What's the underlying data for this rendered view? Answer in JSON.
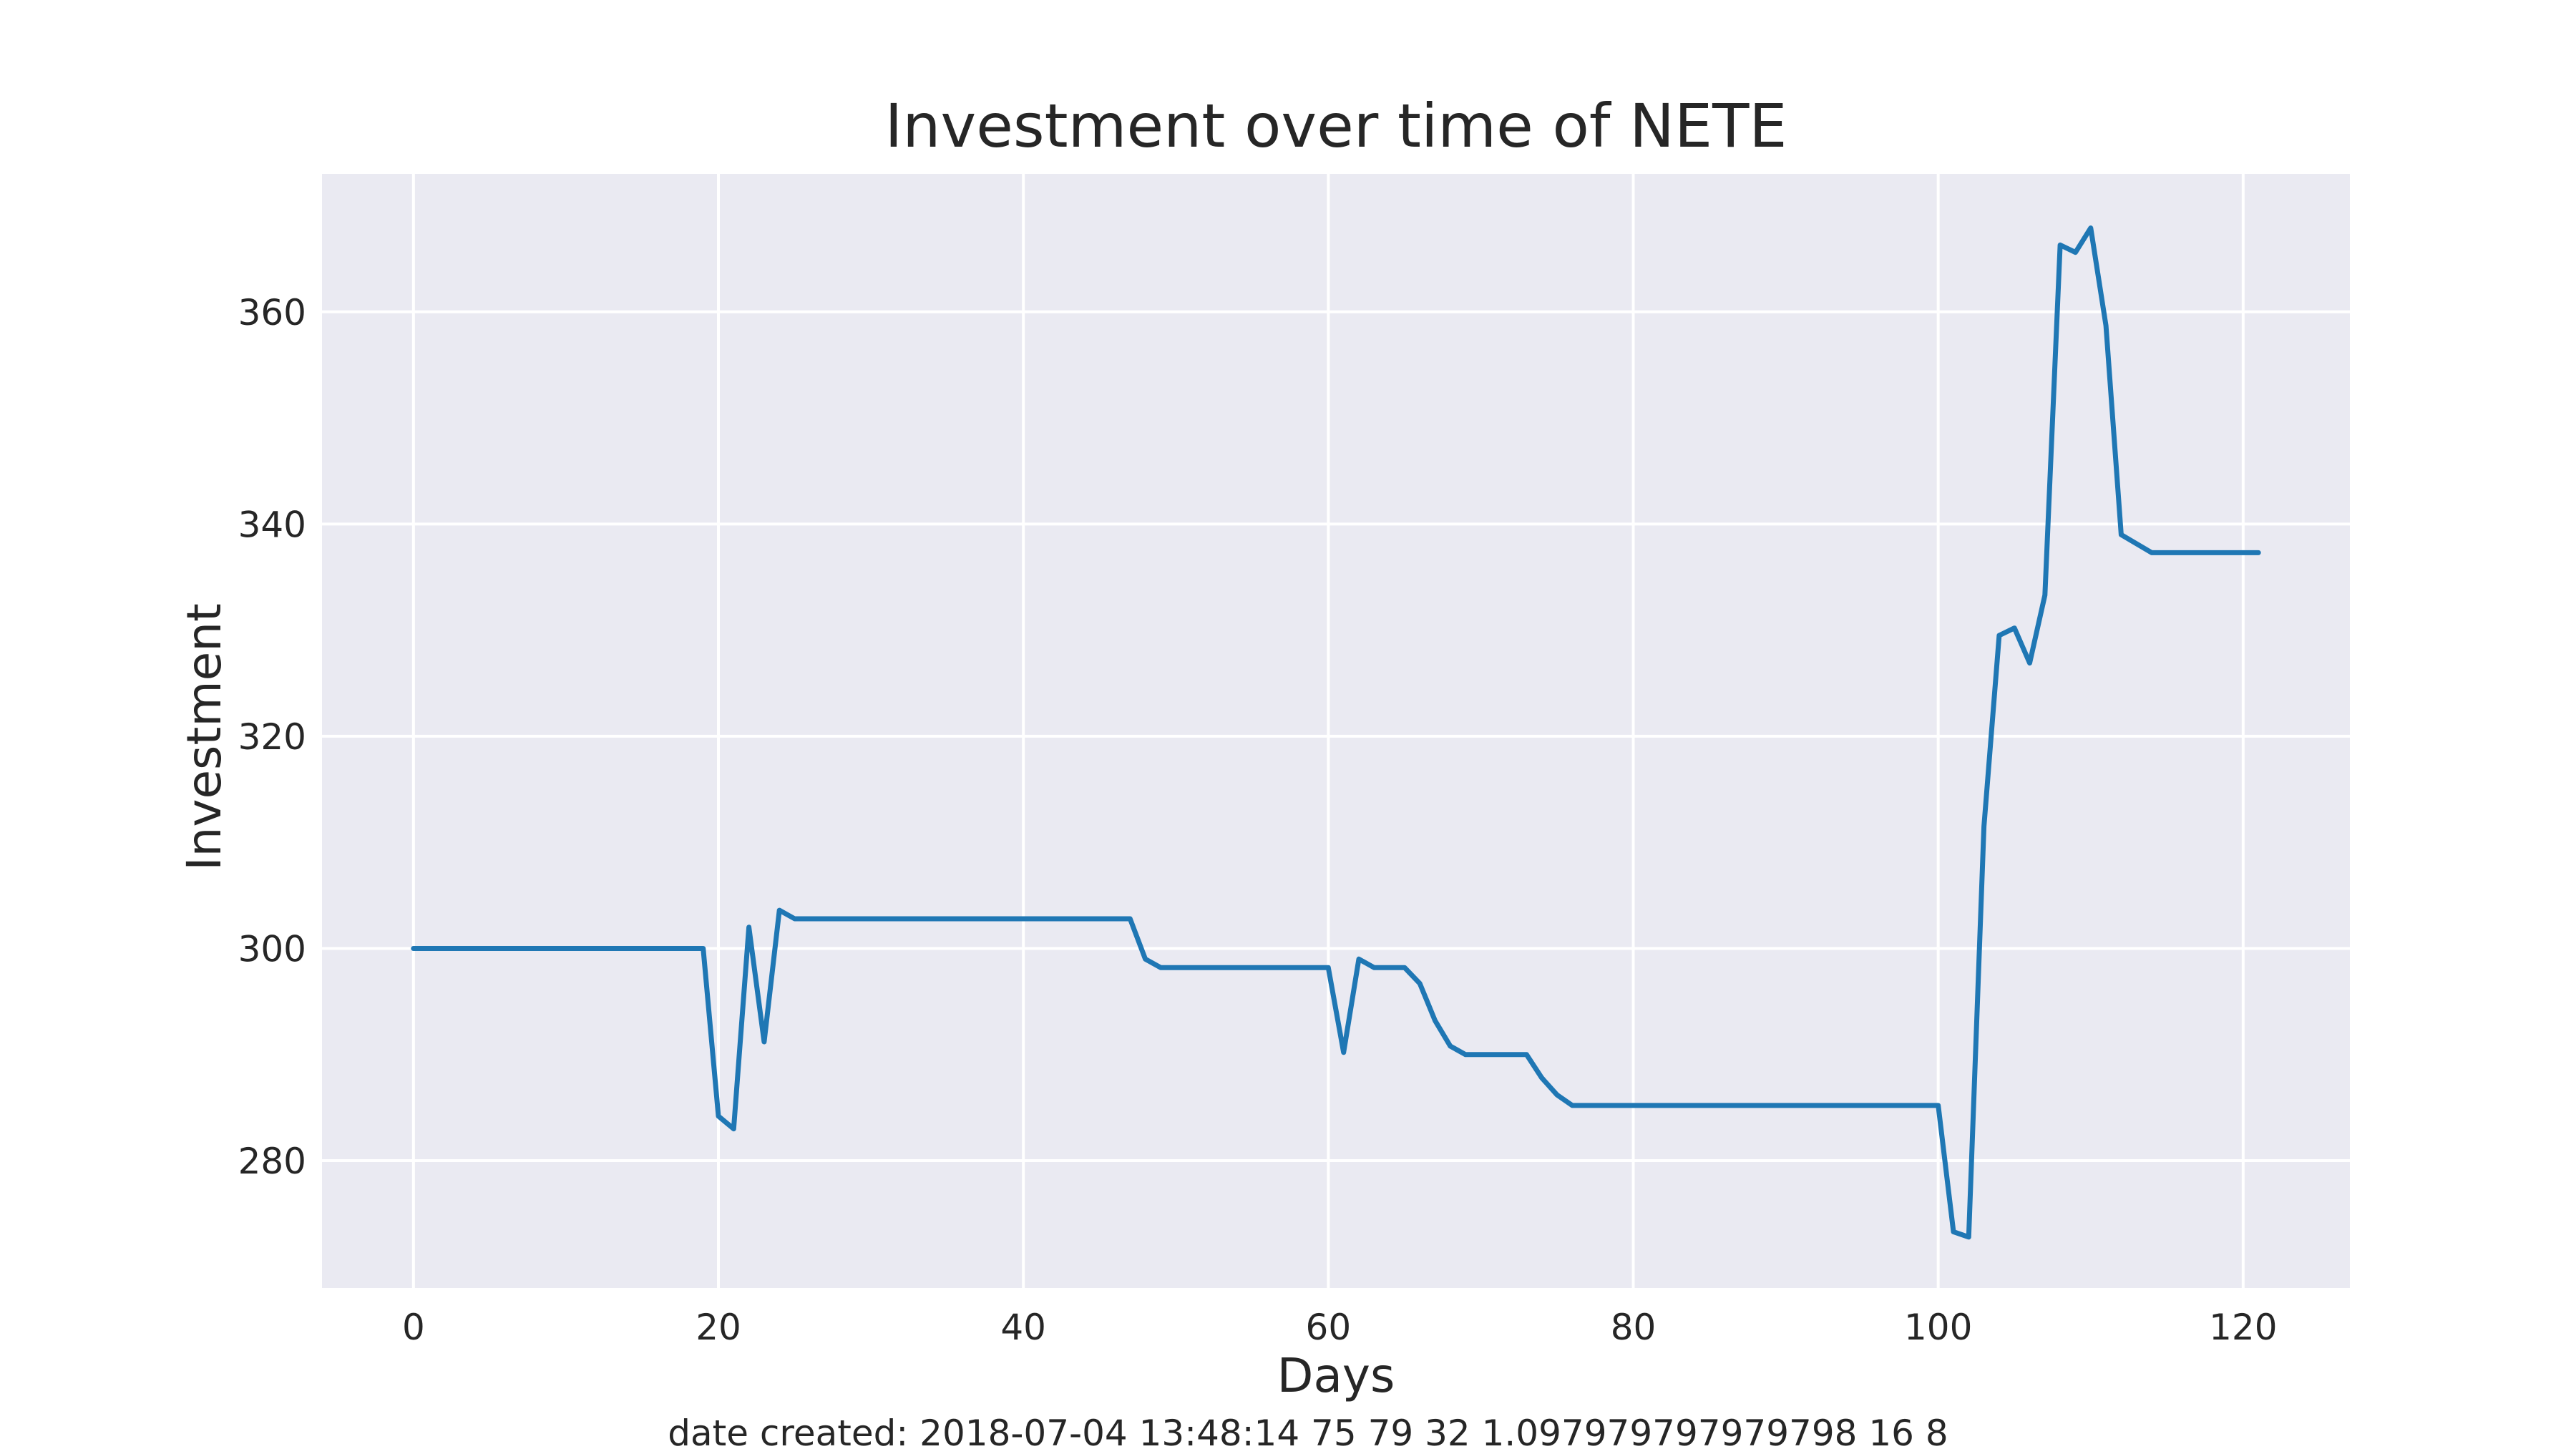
{
  "chart_data": {
    "type": "line",
    "title": "Investment over time of NETE",
    "xlabel": "Days",
    "ylabel": "Investment",
    "xlim": [
      -6,
      127
    ],
    "ylim": [
      268,
      373
    ],
    "x_ticks": [
      0,
      20,
      40,
      60,
      80,
      100,
      120
    ],
    "y_ticks": [
      280,
      300,
      320,
      340,
      360
    ],
    "grid": true,
    "legend": "none",
    "series": [
      {
        "color": "#1f77b4",
        "x": [
          0,
          19,
          20,
          21,
          22,
          23,
          24,
          25,
          47,
          48,
          49,
          60,
          61,
          62,
          63,
          65,
          66,
          67,
          68,
          69,
          73,
          74,
          75,
          76,
          100,
          101,
          102,
          103,
          104,
          105,
          106,
          107,
          108,
          109,
          110,
          111,
          112,
          114,
          121
        ],
        "y": [
          300,
          300,
          284.2,
          283,
          302,
          291.2,
          303.6,
          302.8,
          302.8,
          299,
          298.2,
          298.2,
          290.2,
          299,
          298.2,
          298.2,
          296.7,
          293.2,
          290.8,
          290,
          290,
          287.8,
          286.2,
          285.2,
          285.2,
          273.3,
          272.8,
          311.5,
          329.5,
          330.2,
          326.9,
          333.3,
          366.3,
          365.6,
          367.9,
          358.7,
          339,
          337.3,
          337.3
        ]
      }
    ]
  },
  "footnote": "date created: 2018-07-04 13:48:14 75 79 32 1.097979797979798 16 8",
  "colors": {
    "plot_background": "#eaeaf2",
    "grid": "#ffffff",
    "line": "#1f77b4",
    "text": "#262626"
  }
}
